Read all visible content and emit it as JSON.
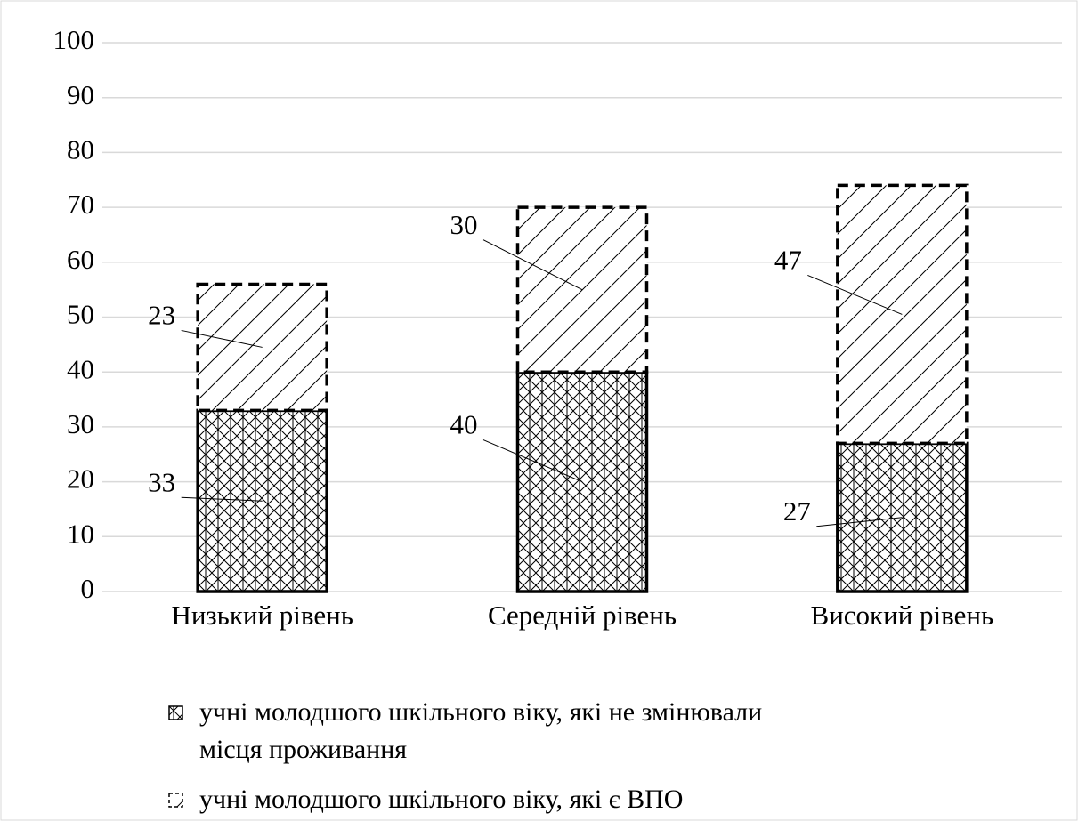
{
  "chart_data": {
    "type": "stacked_bar",
    "categories": [
      "Низький рівень",
      "Середній рівень",
      "Високий рівень"
    ],
    "series": [
      {
        "name": "учні молодшого шкільного віку, які не змінювали місця проживання",
        "color": "#000000",
        "values": [
          33,
          40,
          27
        ]
      },
      {
        "name": "учні молодшого шкільного віку, які є ВПО",
        "color": "#000000",
        "values": [
          23,
          30,
          47
        ]
      }
    ],
    "ylim": [
      0,
      100
    ],
    "yticks": [
      0,
      10,
      20,
      30,
      40,
      50,
      60,
      70,
      80,
      90,
      100
    ],
    "grid": true,
    "legend": "bottom"
  }
}
